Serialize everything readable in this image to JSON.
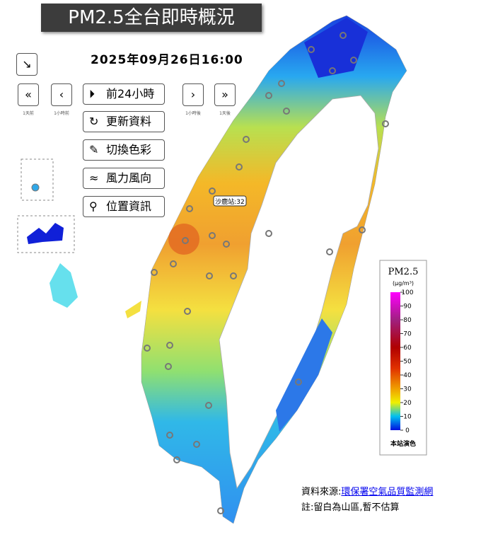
{
  "header": {
    "title": "PM2.5全台即時概況",
    "datetime": "2025年09月26日16:00"
  },
  "controls": {
    "buttons": [
      "前24小時",
      "更新資料",
      "切換色彩",
      "風力風向",
      "位置資訊"
    ],
    "nav": [
      "1天前",
      "1小時前",
      "1小時後",
      "1天後"
    ]
  },
  "map": {
    "tooltip": "沙鹿站:32"
  },
  "legend": {
    "title": "PM2.5",
    "unit": "(μg/m³)",
    "ticks": [
      100,
      90,
      80,
      70,
      60,
      50,
      40,
      30,
      20,
      10,
      0
    ],
    "footer": "本站演色"
  },
  "footer": {
    "source_label": "資料來源:",
    "source_link": "環保署空氣品質監測網",
    "note": "註:留白為山區,暫不估算"
  }
}
